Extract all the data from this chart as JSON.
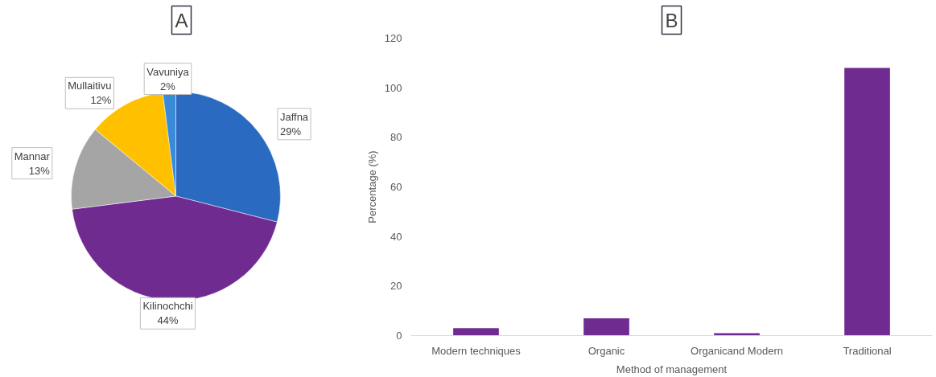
{
  "chart_data": [
    {
      "type": "pie",
      "title": "A",
      "categories": [
        "Jaffna",
        "Kilinochchi",
        "Mannar",
        "Mullaitivu",
        "Vavuniya"
      ],
      "values": [
        29,
        44,
        13,
        12,
        2
      ],
      "colors": [
        "#2a6ac0",
        "#702b91",
        "#a5a5a5",
        "#ffc000",
        "#3a8ad8"
      ],
      "value_labels": [
        "29%",
        "44%",
        "13%",
        "12%",
        "2%"
      ]
    },
    {
      "type": "bar",
      "title": "B",
      "xlabel": "Method of management",
      "ylabel": "Percentage (%)",
      "categories": [
        "Modern techniques",
        "Organic",
        "Organicand Modern",
        "Traditional"
      ],
      "values": [
        3,
        7,
        1,
        108
      ],
      "color": "#702b91",
      "ylim": [
        0,
        120
      ],
      "yticks": [
        0,
        20,
        40,
        60,
        80,
        100,
        120
      ],
      "grid": false
    }
  ]
}
